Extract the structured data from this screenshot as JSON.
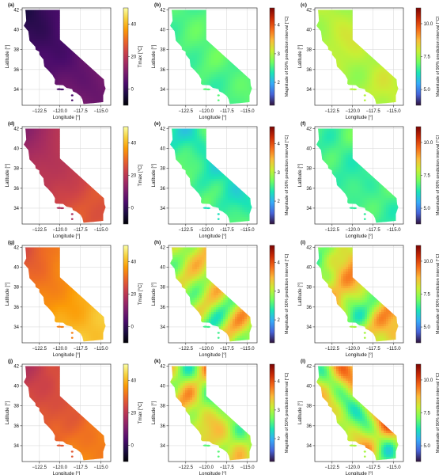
{
  "figure": {
    "rows": 4,
    "cols": 3
  },
  "axes_common": {
    "xlabel": "Longitude [°]",
    "ylabel": "Latitude [°]",
    "xticks": [
      -122.5,
      -120.0,
      -117.5,
      -115.0
    ],
    "xtick_labels": [
      "−122.5",
      "−120.0",
      "−117.5",
      "−115.0"
    ],
    "yticks": [
      34,
      36,
      38,
      40,
      42
    ],
    "ytick_labels": [
      "34",
      "36",
      "38",
      "40",
      "42"
    ],
    "xlim": [
      -124.6,
      -113.8
    ],
    "ylim": [
      32.4,
      42.2
    ],
    "grid": true
  },
  "colorbars": {
    "tmax": {
      "label": "Tmax [°C]",
      "range": [
        -10,
        50
      ],
      "ticks": [
        0,
        20,
        40
      ],
      "tick_labels": [
        "0",
        "20",
        "40"
      ],
      "colormap": "inferno",
      "colors": [
        "#000004",
        "#1b0c41",
        "#4a0c6b",
        "#781c6d",
        "#a52c60",
        "#cf4446",
        "#ed6925",
        "#fb9b06",
        "#f7d13d",
        "#fcffa4"
      ]
    },
    "pi50": {
      "label": "Magnitude of 50% prediction interval [°C]",
      "range": [
        1.2,
        4.6
      ],
      "ticks": [
        2,
        3,
        4
      ],
      "tick_labels": [
        "2",
        "3",
        "4"
      ],
      "colormap": "turbo",
      "colors": [
        "#30123b",
        "#4662d7",
        "#36aaf9",
        "#1ae4b6",
        "#72fe5e",
        "#c8ef34",
        "#faba39",
        "#f66b19",
        "#ca2a04",
        "#7a0403"
      ]
    },
    "pi90": {
      "label": "Magnitude of 90% prediction interval [°C]",
      "range": [
        3.8,
        11.2
      ],
      "ticks": [
        5,
        7.5,
        10
      ],
      "tick_labels": [
        "5.0",
        "7.5",
        "10.0"
      ],
      "colormap": "turbo",
      "colors": [
        "#30123b",
        "#4662d7",
        "#36aaf9",
        "#1ae4b6",
        "#72fe5e",
        "#c8ef34",
        "#faba39",
        "#f66b19",
        "#ca2a04",
        "#7a0403"
      ]
    }
  },
  "chart_data": [
    {
      "panel": "(a)",
      "type": "heatmap",
      "variable": "tmax",
      "colorbar": "tmax",
      "map_value_range": [
        -5,
        12
      ],
      "mean": 3
    },
    {
      "panel": "(b)",
      "type": "heatmap",
      "variable": "pi50",
      "colorbar": "pi50",
      "map_value_range": [
        2.2,
        2.9
      ],
      "mean": 2.6
    },
    {
      "panel": "(c)",
      "type": "heatmap",
      "variable": "pi90",
      "colorbar": "pi90",
      "map_value_range": [
        7.0,
        8.4
      ],
      "mean": 7.7
    },
    {
      "panel": "(d)",
      "type": "heatmap",
      "variable": "tmax",
      "colorbar": "tmax",
      "map_value_range": [
        10,
        30
      ],
      "mean": 18
    },
    {
      "panel": "(e)",
      "type": "heatmap",
      "variable": "pi50",
      "colorbar": "pi50",
      "map_value_range": [
        1.9,
        3.0
      ],
      "mean": 2.3
    },
    {
      "panel": "(f)",
      "type": "heatmap",
      "variable": "pi90",
      "colorbar": "pi90",
      "map_value_range": [
        5.8,
        7.6
      ],
      "mean": 6.5
    },
    {
      "panel": "(g)",
      "type": "heatmap",
      "variable": "tmax",
      "colorbar": "tmax",
      "map_value_range": [
        22,
        46
      ],
      "mean": 33
    },
    {
      "panel": "(h)",
      "type": "heatmap",
      "variable": "pi50",
      "colorbar": "pi50",
      "map_value_range": [
        1.7,
        4.4
      ],
      "mean": 2.5
    },
    {
      "panel": "(i)",
      "type": "heatmap",
      "variable": "pi90",
      "colorbar": "pi90",
      "map_value_range": [
        5.0,
        10.8
      ],
      "mean": 7.6
    },
    {
      "panel": "(j)",
      "type": "heatmap",
      "variable": "tmax",
      "colorbar": "tmax",
      "map_value_range": [
        16,
        36
      ],
      "mean": 27
    },
    {
      "panel": "(k)",
      "type": "heatmap",
      "variable": "pi50",
      "colorbar": "pi50",
      "map_value_range": [
        1.8,
        4.4
      ],
      "mean": 2.6
    },
    {
      "panel": "(l)",
      "type": "heatmap",
      "variable": "pi90",
      "colorbar": "pi90",
      "map_value_range": [
        5.5,
        10.6
      ],
      "mean": 7.6
    }
  ]
}
